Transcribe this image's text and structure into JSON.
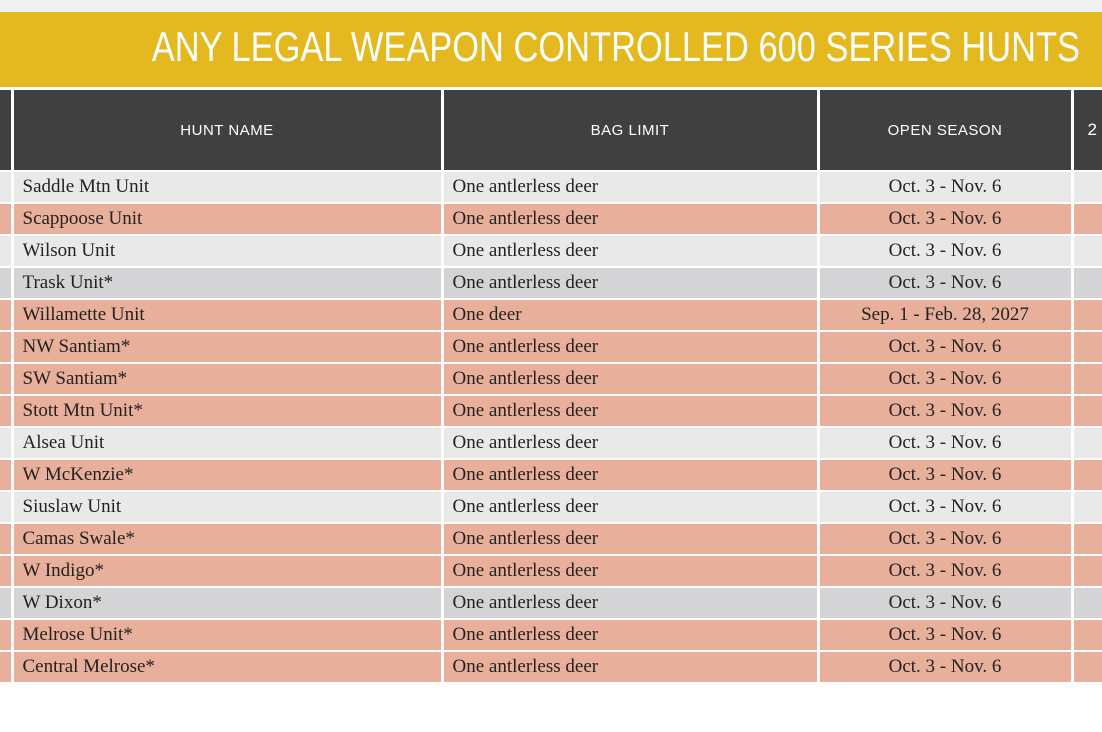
{
  "banner": {
    "title": "ANY LEGAL WEAPON CONTROLLED 600 SERIES HUNTS"
  },
  "table": {
    "headers": [
      "HUNT NAME",
      "BAG LIMIT",
      "OPEN SEASON",
      "2"
    ],
    "rows": [
      {
        "name": "Saddle Mtn Unit",
        "bag": "One antlerless deer",
        "season": "Oct. 3 - Nov. 6",
        "shade": "light"
      },
      {
        "name": "Scappoose Unit",
        "bag": "One antlerless deer",
        "season": "Oct. 3 - Nov. 6",
        "shade": "salmon"
      },
      {
        "name": "Wilson Unit",
        "bag": "One antlerless deer",
        "season": "Oct. 3 - Nov. 6",
        "shade": "light"
      },
      {
        "name": "Trask Unit*",
        "bag": "One antlerless deer",
        "season": "Oct. 3 - Nov. 6",
        "shade": "gray"
      },
      {
        "name": "Willamette Unit",
        "bag": "One deer",
        "season": "Sep. 1 - Feb. 28, 2027",
        "shade": "salmon"
      },
      {
        "name": "NW Santiam*",
        "bag": "One antlerless deer",
        "season": "Oct. 3 - Nov. 6",
        "shade": "salmon"
      },
      {
        "name": "SW Santiam*",
        "bag": "One antlerless deer",
        "season": "Oct. 3 - Nov. 6",
        "shade": "salmon"
      },
      {
        "name": "Stott Mtn Unit*",
        "bag": "One antlerless deer",
        "season": "Oct. 3 - Nov. 6",
        "shade": "salmon"
      },
      {
        "name": "Alsea Unit",
        "bag": "One antlerless deer",
        "season": "Oct. 3 - Nov. 6",
        "shade": "light"
      },
      {
        "name": "W McKenzie*",
        "bag": "One antlerless deer",
        "season": "Oct. 3 - Nov. 6",
        "shade": "salmon"
      },
      {
        "name": "Siuslaw Unit",
        "bag": "One antlerless deer",
        "season": "Oct. 3 - Nov. 6",
        "shade": "light"
      },
      {
        "name": "Camas Swale*",
        "bag": "One antlerless deer",
        "season": "Oct. 3 - Nov. 6",
        "shade": "salmon"
      },
      {
        "name": "W Indigo*",
        "bag": "One antlerless deer",
        "season": "Oct. 3 - Nov. 6",
        "shade": "salmon"
      },
      {
        "name": "W Dixon*",
        "bag": "One antlerless deer",
        "season": "Oct. 3 - Nov. 6",
        "shade": "gray"
      },
      {
        "name": "Melrose Unit*",
        "bag": "One antlerless deer",
        "season": "Oct. 3 - Nov. 6",
        "shade": "salmon"
      },
      {
        "name": "Central Melrose*",
        "bag": "One antlerless deer",
        "season": "Oct. 3 - Nov. 6",
        "shade": "salmon"
      }
    ]
  },
  "colors": {
    "banner": "#e3b91f",
    "header": "#404040",
    "row_light": "#e9e9ea",
    "row_salmon": "#e8b09b",
    "row_gray": "#d4d4d6"
  }
}
